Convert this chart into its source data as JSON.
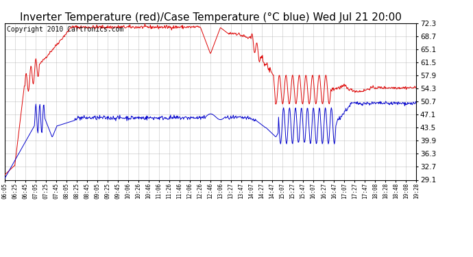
{
  "title": "Inverter Temperature (red)/Case Temperature (°C blue) Wed Jul 21 20:00",
  "copyright": "Copyright 2010 Cartronics.com",
  "yticks": [
    29.1,
    32.7,
    36.3,
    39.9,
    43.5,
    47.1,
    50.7,
    54.3,
    57.9,
    61.5,
    65.1,
    68.7,
    72.3
  ],
  "ymin": 29.1,
  "ymax": 72.3,
  "bg_color": "#ffffff",
  "plot_bg_color": "#ffffff",
  "grid_color": "#aaaaaa",
  "red_color": "#dd0000",
  "blue_color": "#0000cc",
  "title_fontsize": 11,
  "copyright_fontsize": 7,
  "xtick_labels": [
    "06:05",
    "06:25",
    "06:45",
    "07:05",
    "07:25",
    "07:45",
    "08:05",
    "08:25",
    "08:45",
    "09:05",
    "09:25",
    "09:45",
    "10:06",
    "10:26",
    "10:46",
    "11:06",
    "11:26",
    "11:46",
    "12:06",
    "12:26",
    "12:46",
    "13:06",
    "13:27",
    "13:47",
    "14:07",
    "14:27",
    "14:47",
    "15:07",
    "15:27",
    "15:47",
    "16:07",
    "16:27",
    "16:47",
    "17:07",
    "17:27",
    "17:47",
    "18:08",
    "18:28",
    "18:48",
    "19:08",
    "19:28"
  ]
}
